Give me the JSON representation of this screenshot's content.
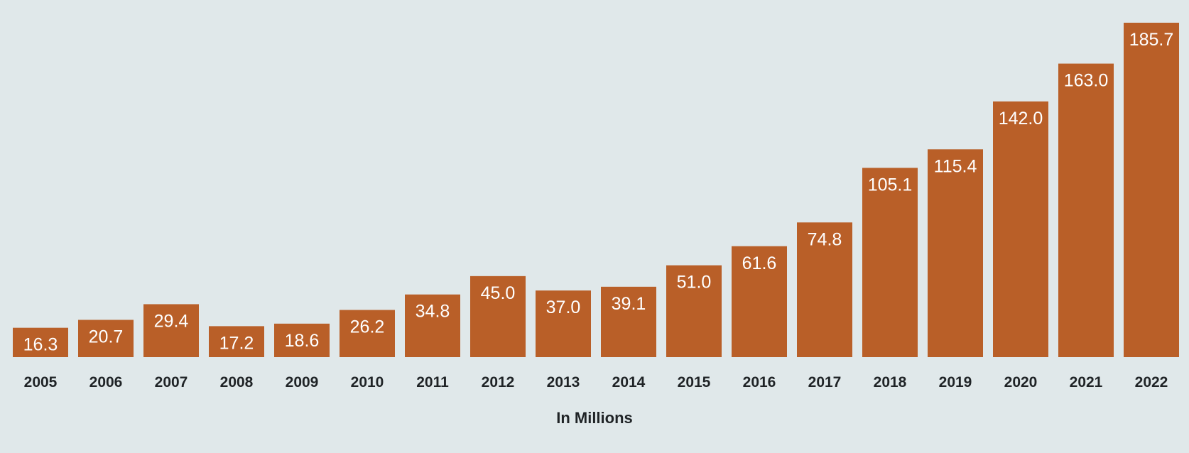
{
  "chart_data": {
    "type": "bar",
    "categories": [
      "2005",
      "2006",
      "2007",
      "2008",
      "2009",
      "2010",
      "2011",
      "2012",
      "2013",
      "2014",
      "2015",
      "2016",
      "2017",
      "2018",
      "2019",
      "2020",
      "2021",
      "2022"
    ],
    "values": [
      16.3,
      20.7,
      29.4,
      17.2,
      18.6,
      26.2,
      34.8,
      45.0,
      37.0,
      39.1,
      51.0,
      61.6,
      74.8,
      105.1,
      115.4,
      142.0,
      163.0,
      185.7
    ],
    "value_labels": [
      "16.3",
      "20.7",
      "29.4",
      "17.2",
      "18.6",
      "26.2",
      "34.8",
      "45.0",
      "37.0",
      "39.1",
      "51.0",
      "61.6",
      "74.8",
      "105.1",
      "115.4",
      "142.0",
      "163.0",
      "185.7"
    ],
    "title": "",
    "xlabel": "In Millions",
    "ylabel": "",
    "ylim": [
      0,
      185.7
    ],
    "grid": false,
    "legend": "none",
    "colors": {
      "bar": "#b95f28",
      "background": "#e0e8ea",
      "value_label": "#ffffff",
      "axis_text": "#1f2326"
    }
  }
}
